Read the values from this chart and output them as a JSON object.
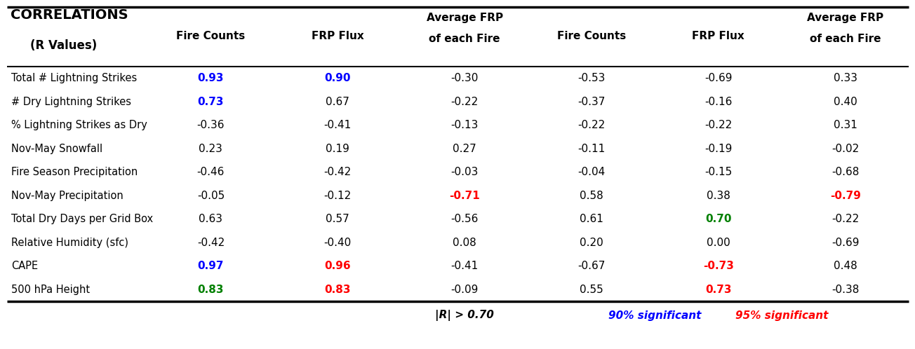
{
  "title_line1": "CORRELATIONS",
  "title_line2": "(R Values)",
  "col_headers": [
    "Fire Counts",
    "FRP Flux",
    "Average FRP\nof each Fire",
    "Fire Counts",
    "FRP Flux",
    "Average FRP\nof each Fire"
  ],
  "row_labels": [
    "Total # Lightning Strikes",
    "# Dry Lightning Strikes",
    "% Lightning Strikes as Dry",
    "Nov-May Snowfall",
    "Fire Season Precipitation",
    "Nov-May Precipitation",
    "Total Dry Days per Grid Box",
    "Relative Humidity (sfc)",
    "CAPE",
    "500 hPa Height"
  ],
  "cell_values": [
    [
      "0.93",
      "0.90",
      "-0.30",
      "-0.53",
      "-0.69",
      "0.33"
    ],
    [
      "0.73",
      "0.67",
      "-0.22",
      "-0.37",
      "-0.16",
      "0.40"
    ],
    [
      "-0.36",
      "-0.41",
      "-0.13",
      "-0.22",
      "-0.22",
      "0.31"
    ],
    [
      "0.23",
      "0.19",
      "0.27",
      "-0.11",
      "-0.19",
      "-0.02"
    ],
    [
      "-0.46",
      "-0.42",
      "-0.03",
      "-0.04",
      "-0.15",
      "-0.68"
    ],
    [
      "-0.05",
      "-0.12",
      "-0.71",
      "0.58",
      "0.38",
      "-0.79"
    ],
    [
      "0.63",
      "0.57",
      "-0.56",
      "0.61",
      "0.70",
      "-0.22"
    ],
    [
      "-0.42",
      "-0.40",
      "0.08",
      "0.20",
      "0.00",
      "-0.69"
    ],
    [
      "0.97",
      "0.96",
      "-0.41",
      "-0.67",
      "-0.73",
      "0.48"
    ],
    [
      "0.83",
      "0.83",
      "-0.09",
      "0.55",
      "0.73",
      "-0.38"
    ]
  ],
  "cell_colors": [
    [
      "blue",
      "blue",
      "black",
      "black",
      "black",
      "black"
    ],
    [
      "blue",
      "black",
      "black",
      "black",
      "black",
      "black"
    ],
    [
      "black",
      "black",
      "black",
      "black",
      "black",
      "black"
    ],
    [
      "black",
      "black",
      "black",
      "black",
      "black",
      "black"
    ],
    [
      "black",
      "black",
      "black",
      "black",
      "black",
      "black"
    ],
    [
      "black",
      "black",
      "red",
      "black",
      "black",
      "red"
    ],
    [
      "black",
      "black",
      "black",
      "black",
      "green",
      "black"
    ],
    [
      "black",
      "black",
      "black",
      "black",
      "black",
      "black"
    ],
    [
      "blue",
      "red",
      "black",
      "black",
      "red",
      "black"
    ],
    [
      "green",
      "red",
      "black",
      "black",
      "red",
      "black"
    ]
  ],
  "cell_bold": [
    [
      true,
      true,
      false,
      false,
      false,
      false
    ],
    [
      true,
      false,
      false,
      false,
      false,
      false
    ],
    [
      false,
      false,
      false,
      false,
      false,
      false
    ],
    [
      false,
      false,
      false,
      false,
      false,
      false
    ],
    [
      false,
      false,
      false,
      false,
      false,
      false
    ],
    [
      false,
      false,
      true,
      false,
      false,
      true
    ],
    [
      false,
      false,
      false,
      false,
      true,
      false
    ],
    [
      false,
      false,
      false,
      false,
      false,
      false
    ],
    [
      true,
      true,
      false,
      false,
      true,
      false
    ],
    [
      true,
      true,
      false,
      false,
      true,
      false
    ]
  ],
  "footer_text": [
    "|R| > 0.70",
    "90% significant",
    "95% significant"
  ],
  "footer_colors": [
    "black",
    "blue",
    "red"
  ],
  "bg_color": "#ffffff"
}
